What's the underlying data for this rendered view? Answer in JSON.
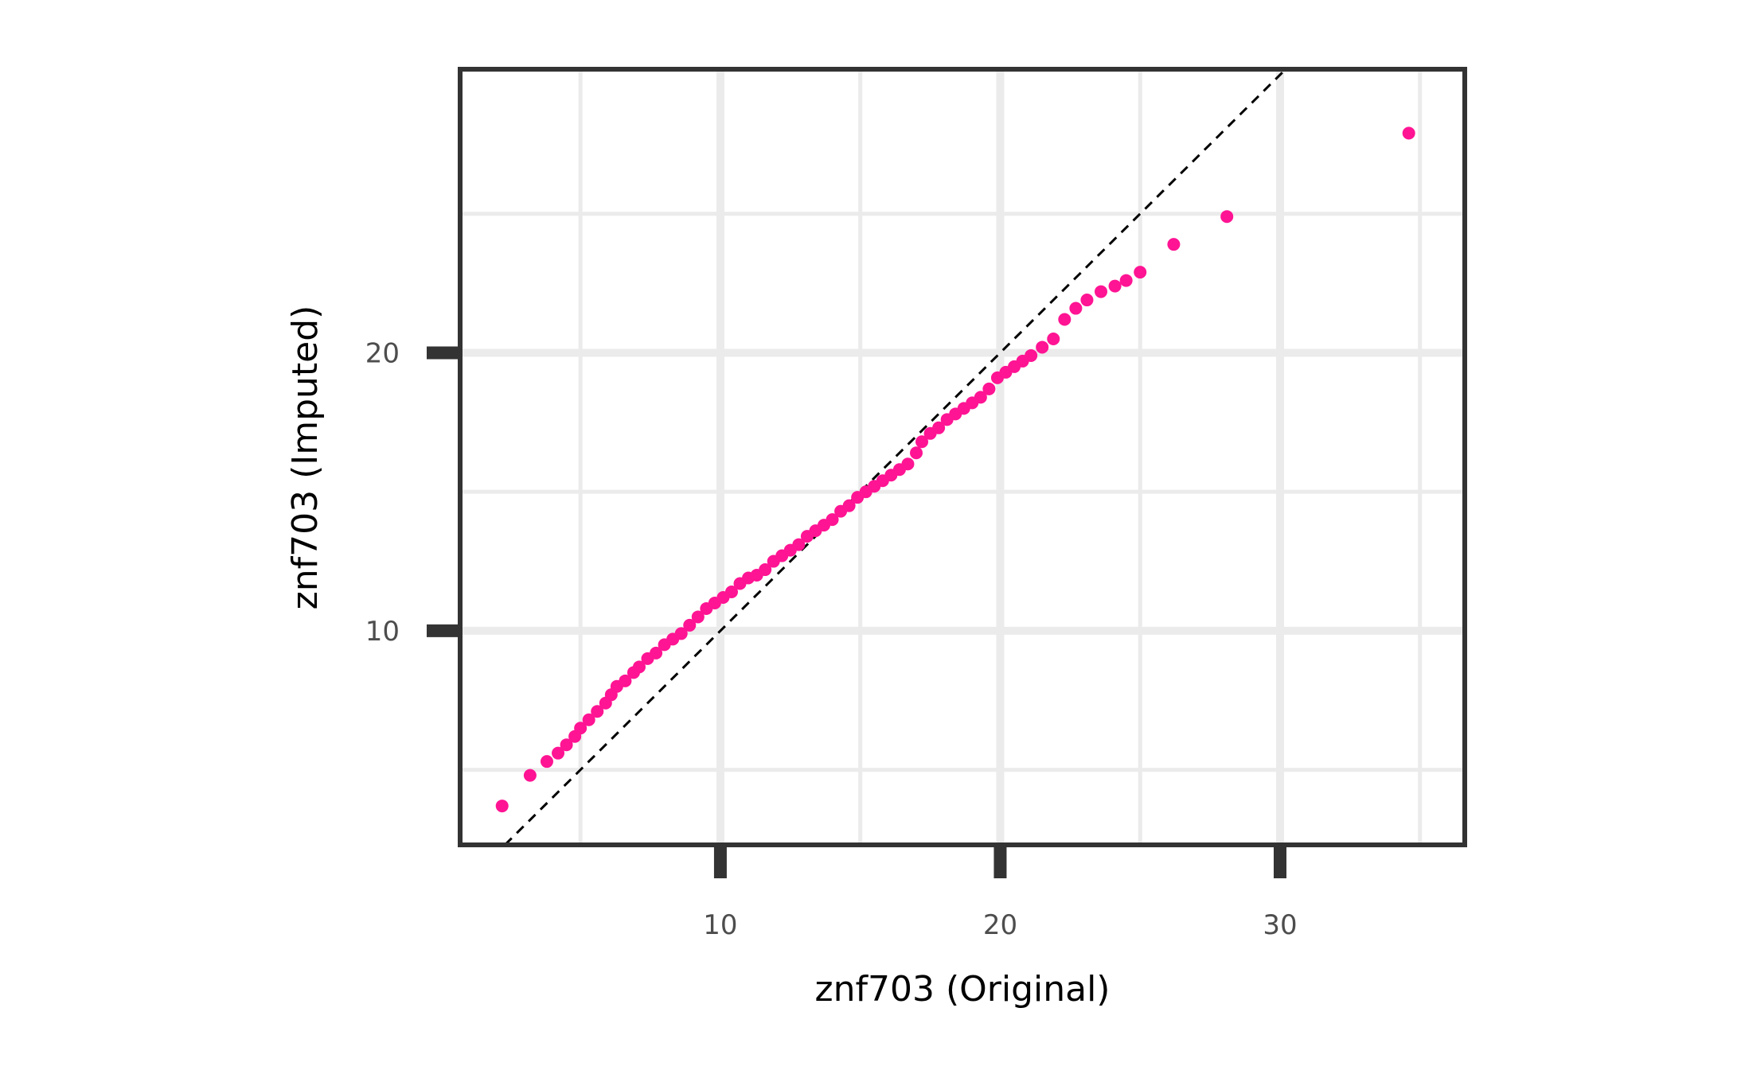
{
  "chart_data": {
    "type": "scatter",
    "title": "",
    "xlabel": "znf703 (Original)",
    "ylabel": "znf703 (Imputed)",
    "xlim": [
      0.7,
      36.6
    ],
    "ylim": [
      2.3,
      30.2
    ],
    "x_ticks": [
      10,
      20,
      30
    ],
    "x_tick_labels": [
      "10",
      "20",
      "30"
    ],
    "y_ticks": [
      10,
      20
    ],
    "y_tick_labels": [
      "10",
      "20"
    ],
    "x_minor_ticks": [
      5,
      15,
      25,
      35
    ],
    "y_minor_ticks": [
      5,
      15,
      25
    ],
    "grid": true,
    "legend": "none",
    "reference_line": {
      "type": "identity",
      "style": "dashed",
      "color": "#000000"
    },
    "point_color": "#ff1493",
    "points": [
      [
        2.2,
        3.7
      ],
      [
        3.2,
        4.8
      ],
      [
        3.8,
        5.3
      ],
      [
        4.2,
        5.6
      ],
      [
        4.5,
        5.9
      ],
      [
        4.8,
        6.2
      ],
      [
        5.0,
        6.5
      ],
      [
        5.3,
        6.8
      ],
      [
        5.6,
        7.1
      ],
      [
        5.9,
        7.4
      ],
      [
        6.1,
        7.7
      ],
      [
        6.3,
        8.0
      ],
      [
        6.6,
        8.2
      ],
      [
        6.9,
        8.5
      ],
      [
        7.1,
        8.7
      ],
      [
        7.4,
        9.0
      ],
      [
        7.7,
        9.2
      ],
      [
        8.0,
        9.5
      ],
      [
        8.3,
        9.7
      ],
      [
        8.6,
        9.9
      ],
      [
        8.9,
        10.2
      ],
      [
        9.2,
        10.5
      ],
      [
        9.5,
        10.8
      ],
      [
        9.8,
        11.0
      ],
      [
        10.1,
        11.2
      ],
      [
        10.4,
        11.4
      ],
      [
        10.7,
        11.7
      ],
      [
        11.0,
        11.9
      ],
      [
        11.3,
        12.0
      ],
      [
        11.6,
        12.2
      ],
      [
        11.9,
        12.5
      ],
      [
        12.2,
        12.7
      ],
      [
        12.5,
        12.9
      ],
      [
        12.8,
        13.1
      ],
      [
        13.1,
        13.4
      ],
      [
        13.4,
        13.6
      ],
      [
        13.7,
        13.8
      ],
      [
        14.0,
        14.0
      ],
      [
        14.3,
        14.3
      ],
      [
        14.6,
        14.5
      ],
      [
        14.9,
        14.8
      ],
      [
        15.2,
        15.0
      ],
      [
        15.5,
        15.2
      ],
      [
        15.8,
        15.4
      ],
      [
        16.1,
        15.6
      ],
      [
        16.4,
        15.8
      ],
      [
        16.7,
        16.0
      ],
      [
        17.0,
        16.4
      ],
      [
        17.2,
        16.8
      ],
      [
        17.5,
        17.1
      ],
      [
        17.8,
        17.3
      ],
      [
        18.1,
        17.6
      ],
      [
        18.4,
        17.8
      ],
      [
        18.7,
        18.0
      ],
      [
        19.0,
        18.2
      ],
      [
        19.3,
        18.4
      ],
      [
        19.6,
        18.7
      ],
      [
        19.9,
        19.1
      ],
      [
        20.2,
        19.3
      ],
      [
        20.5,
        19.5
      ],
      [
        20.8,
        19.7
      ],
      [
        21.1,
        19.9
      ],
      [
        21.5,
        20.2
      ],
      [
        21.9,
        20.5
      ],
      [
        22.3,
        21.2
      ],
      [
        22.7,
        21.6
      ],
      [
        23.1,
        21.9
      ],
      [
        23.6,
        22.2
      ],
      [
        24.1,
        22.4
      ],
      [
        24.5,
        22.6
      ],
      [
        25.0,
        22.9
      ],
      [
        26.2,
        23.9
      ],
      [
        28.1,
        24.9
      ],
      [
        34.6,
        27.9
      ]
    ]
  }
}
